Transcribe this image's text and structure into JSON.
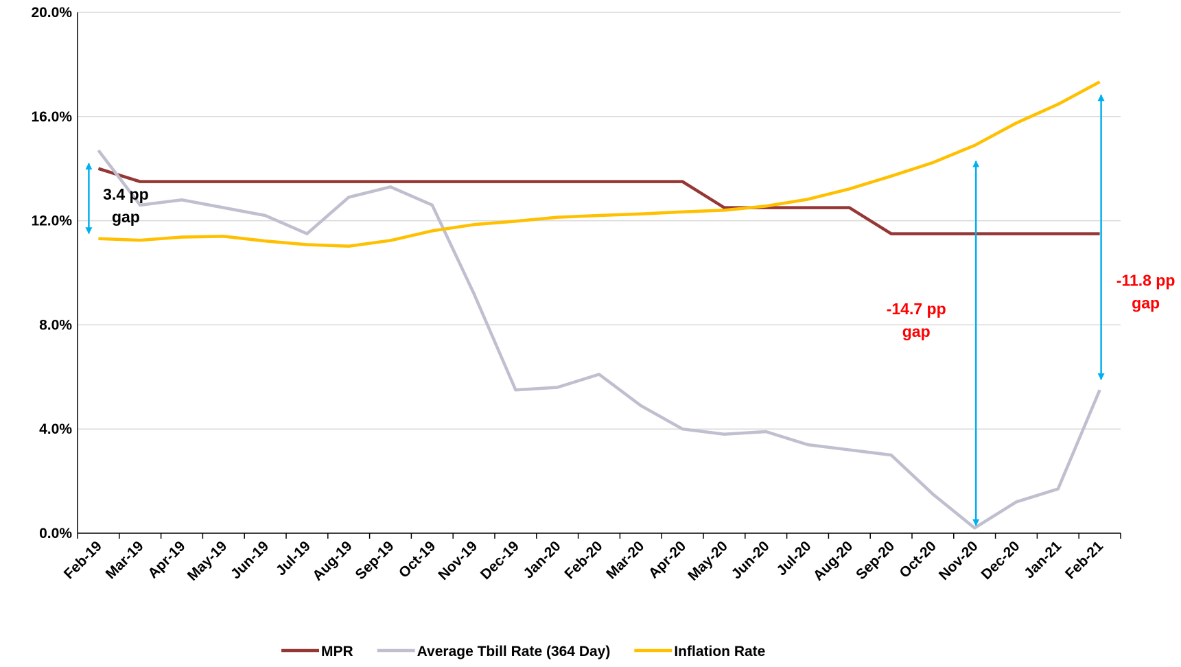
{
  "chart_data": {
    "type": "line",
    "categories": [
      "Feb-19",
      "Mar-19",
      "Apr-19",
      "May-19",
      "Jun-19",
      "Jul-19",
      "Aug-19",
      "Sep-19",
      "Oct-19",
      "Nov-19",
      "Dec-19",
      "Jan-20",
      "Feb-20",
      "Mar-20",
      "Apr-20",
      "May-20",
      "Jun-20",
      "Jul-20",
      "Aug-20",
      "Sep-20",
      "Oct-20",
      "Nov-20",
      "Dec-20",
      "Jan-21",
      "Feb-21"
    ],
    "series": [
      {
        "name": "MPR",
        "color": "#953735",
        "values": [
          14.0,
          13.5,
          13.5,
          13.5,
          13.5,
          13.5,
          13.5,
          13.5,
          13.5,
          13.5,
          13.5,
          13.5,
          13.5,
          13.5,
          13.5,
          12.5,
          12.5,
          12.5,
          12.5,
          11.5,
          11.5,
          11.5,
          11.5,
          11.5,
          11.5
        ]
      },
      {
        "name": "Average Tbill Rate (364 Day)",
        "color": "#bfbfcf",
        "values": [
          14.7,
          12.6,
          12.8,
          12.5,
          12.2,
          11.5,
          12.9,
          13.3,
          12.6,
          9.2,
          5.5,
          5.6,
          6.1,
          4.9,
          4.0,
          3.8,
          3.9,
          3.4,
          3.2,
          3.0,
          1.5,
          0.2,
          1.2,
          1.7,
          5.5
        ]
      },
      {
        "name": "Inflation Rate",
        "color": "#ffc000",
        "values": [
          11.31,
          11.25,
          11.37,
          11.4,
          11.22,
          11.08,
          11.02,
          11.24,
          11.61,
          11.85,
          11.98,
          12.13,
          12.2,
          12.26,
          12.34,
          12.4,
          12.56,
          12.82,
          13.22,
          13.71,
          14.23,
          14.89,
          15.75,
          16.47,
          17.33
        ]
      }
    ],
    "ylim": [
      0,
      20
    ],
    "yticks": [
      {
        "value": 0,
        "label": "0.0%"
      },
      {
        "value": 4,
        "label": "4.0%"
      },
      {
        "value": 8,
        "label": "8.0%"
      },
      {
        "value": 12,
        "label": "12.0%"
      },
      {
        "value": 16,
        "label": "16.0%"
      },
      {
        "value": 20,
        "label": "20.0%"
      }
    ],
    "grid": true,
    "annotations": [
      {
        "lines": [
          "3.4 pp",
          "gap"
        ],
        "color": "#000000"
      },
      {
        "lines": [
          "-14.7 pp",
          "gap"
        ],
        "color": "#ff0000"
      },
      {
        "lines": [
          "-11.8 pp",
          "gap"
        ],
        "color": "#ff0000"
      }
    ],
    "arrow_color": "#00b0f0",
    "legend": "bottom"
  }
}
